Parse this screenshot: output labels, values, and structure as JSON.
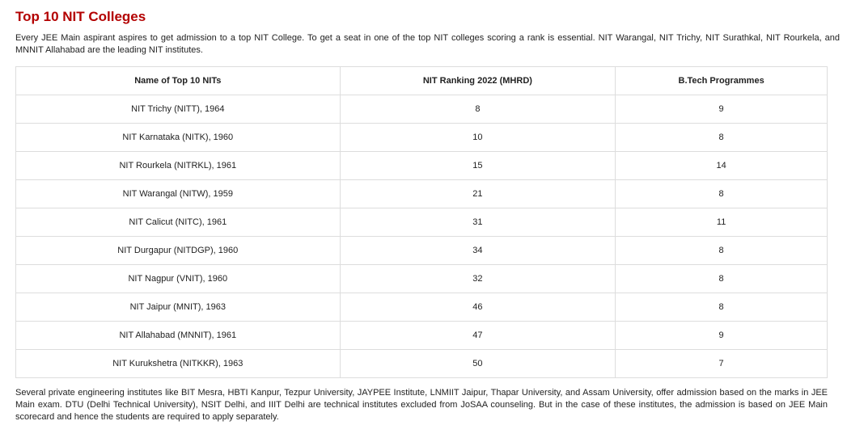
{
  "heading": "Top 10 NIT Colleges",
  "intro": "Every JEE Main aspirant aspires to get admission to a top NIT College. To get a seat in one of the top NIT colleges scoring a rank is essential. NIT Warangal, NIT Trichy, NIT Surathkal, NIT Rourkela, and MNNIT Allahabad are the leading NIT institutes.",
  "table": {
    "headers": [
      "Name of Top 10 NITs",
      "NIT Ranking 2022 (MHRD)",
      "B.Tech Programmes"
    ],
    "rows": [
      [
        "NIT Trichy (NITT), 1964",
        "8",
        "9"
      ],
      [
        "NIT Karnataka (NITK), 1960",
        "10",
        "8"
      ],
      [
        "NIT Rourkela (NITRKL), 1961",
        "15",
        "14"
      ],
      [
        "NIT Warangal (NITW), 1959",
        "21",
        "8"
      ],
      [
        "NIT Calicut (NITC), 1961",
        "31",
        "11"
      ],
      [
        "NIT Durgapur (NITDGP), 1960",
        "34",
        "8"
      ],
      [
        "NIT Nagpur (VNIT), 1960",
        "32",
        "8"
      ],
      [
        "NIT Jaipur (MNIT), 1963",
        "46",
        "8"
      ],
      [
        "NIT Allahabad (MNNIT), 1961",
        "47",
        "9"
      ],
      [
        "NIT Kurukshetra (NITKKR), 1963",
        "50",
        "7"
      ]
    ]
  },
  "outro": "Several private engineering institutes like BIT Mesra, HBTI Kanpur, Tezpur University, JAYPEE Institute, LNMIIT Jaipur, Thapar University, and Assam University, offer admission based on the marks in JEE Main exam. DTU (Delhi Technical University), NSIT Delhi, and IIIT Delhi are technical institutes excluded from JoSAA counseling. But in the case of these institutes, the admission is based on JEE Main scorecard and hence the students are required to apply separately.",
  "colors": {
    "heading": "#b30000",
    "border": "#dddddd",
    "text": "#222222"
  }
}
